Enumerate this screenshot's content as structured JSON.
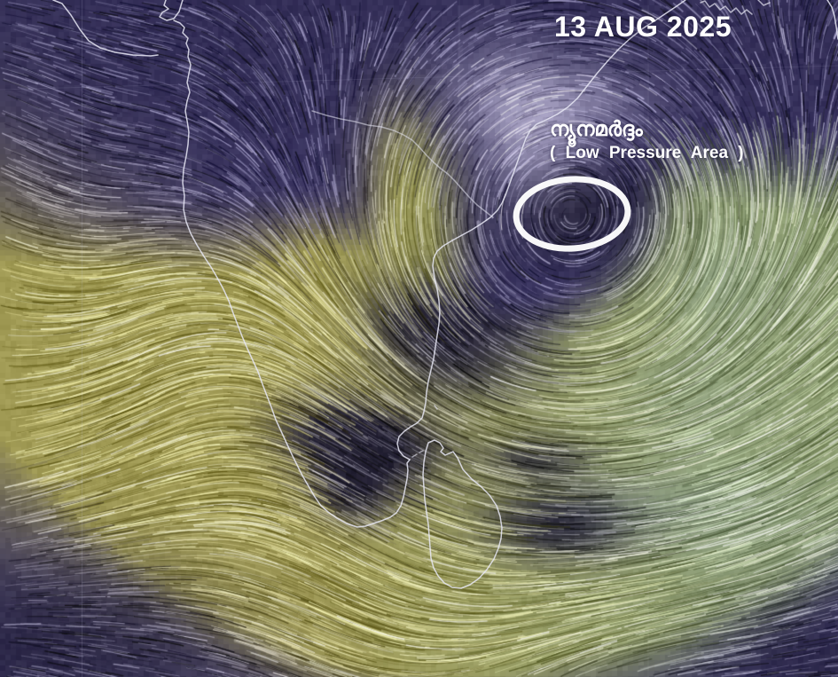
{
  "map": {
    "date_label": "13 AUG 2025",
    "annotation": {
      "malayalam": "ന്യൂനമർദ്ദം",
      "english": "( Low Pressure Area )"
    },
    "colors": {
      "calm_wind_purple": "#3e3868",
      "fast_wind_olive": "#96945c",
      "fast_wind_sage": "#9aa87c",
      "dark_calm_patch": "#2f2a52",
      "annotation_white": "#ffffff",
      "coastline": "#e8e8f4"
    }
  }
}
